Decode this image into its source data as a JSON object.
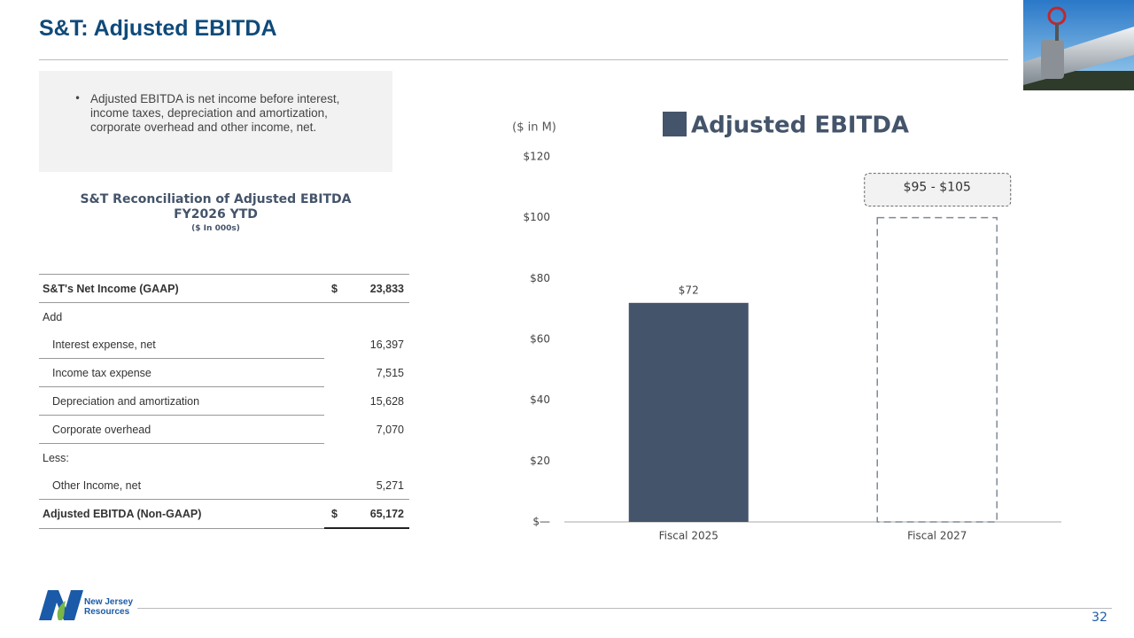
{
  "header": {
    "title": "S&T: Adjusted EBITDA"
  },
  "bullet": "Adjusted EBITDA is net income before interest, income taxes, depreciation and amortization, corporate overhead and other income, net.",
  "table": {
    "title_lines": [
      "S&T Reconciliation of Adjusted EBITDA",
      "FY2026 YTD",
      "($ In 000s)"
    ],
    "rows": [
      {
        "label": "S&T's Net Income (GAAP)",
        "currency": "$",
        "value": "23,833",
        "bold": true
      },
      {
        "label": "Add"
      },
      {
        "label": "Interest expense, net",
        "value": "16,397",
        "indent": true
      },
      {
        "label": "Income tax expense",
        "value": "7,515",
        "indent": true
      },
      {
        "label": "Depreciation and amortization",
        "value": "15,628",
        "indent": true
      },
      {
        "label": "Corporate overhead",
        "value": "7,070",
        "indent": true
      },
      {
        "label": "Less:"
      },
      {
        "label": "Other Income, net",
        "value": "5,271",
        "indent": true
      },
      {
        "label": "Adjusted EBITDA (Non-GAAP)",
        "currency": "$",
        "value": "65,172",
        "bold": true
      }
    ]
  },
  "chart_data": {
    "type": "bar",
    "y_label": "($ in M)",
    "categories": [
      "Fiscal 2025",
      "Fiscal 2027"
    ],
    "series": [
      {
        "name": "Adjusted EBITDA",
        "color": "#44546a",
        "values": [
          72,
          100
        ],
        "value_labels": [
          "$72",
          "$95 - $105"
        ]
      }
    ],
    "bar_styles": [
      "filled",
      "dashed-outline"
    ],
    "ylim": [
      0,
      120
    ],
    "yticks": [
      {
        "value": 0,
        "label": "$—"
      },
      {
        "value": 20,
        "label": "$20"
      },
      {
        "value": 40,
        "label": "$40"
      },
      {
        "value": 60,
        "label": "$60"
      },
      {
        "value": 80,
        "label": "$80"
      },
      {
        "value": 100,
        "label": "$100"
      },
      {
        "value": 120,
        "label": "$120"
      }
    ],
    "legend": "top"
  },
  "footer": {
    "logo_lines": [
      "New Jersey",
      "Resources"
    ],
    "page": "32"
  }
}
